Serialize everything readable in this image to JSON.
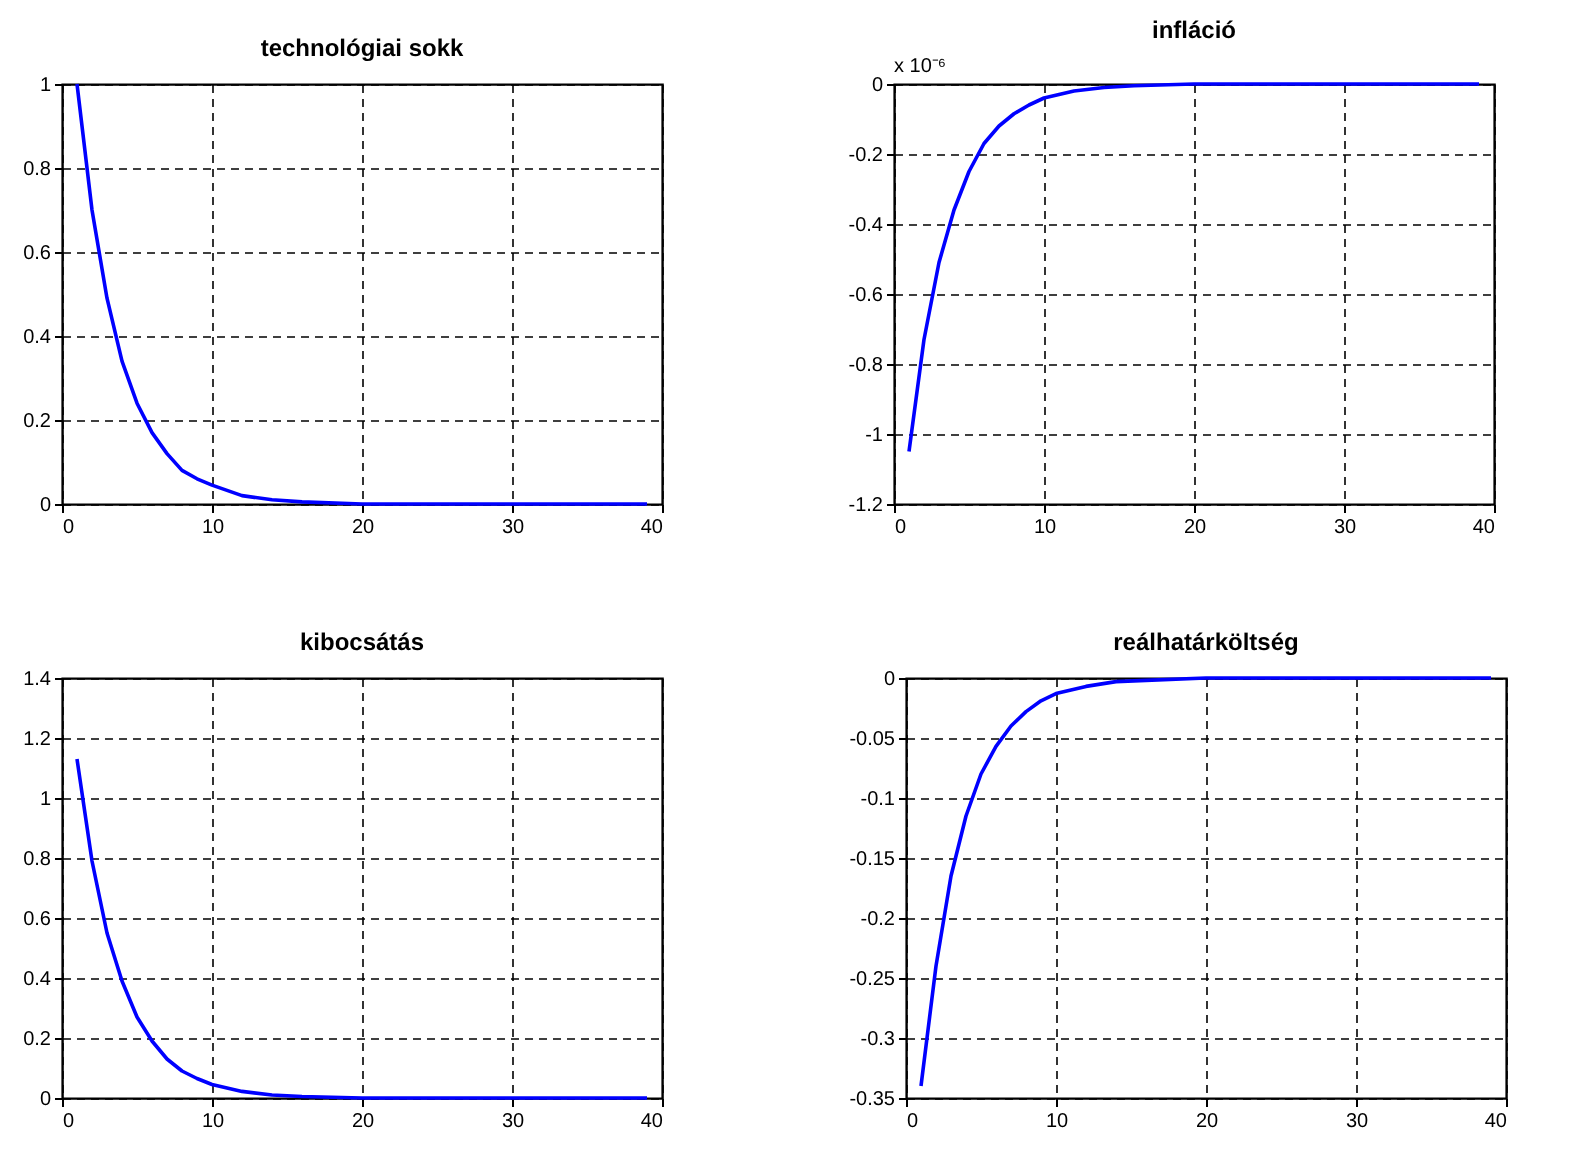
{
  "chart_data": [
    {
      "type": "line",
      "title": "technológiai sokk",
      "x": [
        1,
        2,
        3,
        4,
        5,
        6,
        7,
        8,
        9,
        10,
        12,
        14,
        16,
        20,
        39
      ],
      "series": [
        {
          "color": "#0000ff",
          "values": [
            1,
            0.7,
            0.49,
            0.34,
            0.24,
            0.17,
            0.12,
            0.08,
            0.06,
            0.045,
            0.02,
            0.01,
            0.005,
            0,
            0
          ]
        }
      ],
      "xlim": [
        0,
        40
      ],
      "xticks": [
        0,
        10,
        20,
        30,
        40
      ],
      "ylim": [
        0,
        1
      ],
      "yticks": [
        0,
        0.2,
        0.4,
        0.6,
        0.8,
        1
      ],
      "grid": true,
      "marker": "none",
      "line_style": "solid"
    },
    {
      "type": "line",
      "title": "infláció",
      "annotations": [
        "x 10⁻⁶"
      ],
      "x": [
        1,
        2,
        3,
        4,
        5,
        6,
        7,
        8,
        9,
        10,
        12,
        14,
        16,
        20,
        39
      ],
      "series": [
        {
          "color": "#0000ff",
          "values": [
            -1.05,
            -0.73,
            -0.51,
            -0.36,
            -0.25,
            -0.17,
            -0.12,
            -0.085,
            -0.06,
            -0.04,
            -0.02,
            -0.01,
            -0.005,
            0,
            0
          ]
        }
      ],
      "xlim": [
        0,
        40
      ],
      "xticks": [
        0,
        10,
        20,
        30,
        40
      ],
      "ylim": [
        -1.2,
        0
      ],
      "yticks": [
        -1.2,
        -1,
        -0.8,
        -0.6,
        -0.4,
        -0.2,
        0
      ],
      "grid": true,
      "marker": "none",
      "line_style": "solid"
    },
    {
      "type": "line",
      "title": "kibocsátás",
      "x": [
        1,
        2,
        3,
        4,
        5,
        6,
        7,
        8,
        9,
        10,
        12,
        14,
        16,
        20,
        39
      ],
      "series": [
        {
          "color": "#0000ff",
          "values": [
            1.13,
            0.79,
            0.55,
            0.39,
            0.27,
            0.19,
            0.13,
            0.09,
            0.065,
            0.045,
            0.022,
            0.01,
            0.005,
            0,
            0
          ]
        }
      ],
      "xlim": [
        0,
        40
      ],
      "xticks": [
        0,
        10,
        20,
        30,
        40
      ],
      "ylim": [
        0,
        1.4
      ],
      "yticks": [
        0,
        0.2,
        0.4,
        0.6,
        0.8,
        1,
        1.2,
        1.4
      ],
      "grid": true,
      "marker": "none",
      "line_style": "solid"
    },
    {
      "type": "line",
      "title": "reálhatárköltség",
      "x": [
        1,
        2,
        3,
        4,
        5,
        6,
        7,
        8,
        9,
        10,
        12,
        14,
        16,
        20,
        39
      ],
      "series": [
        {
          "color": "#0000ff",
          "values": [
            -0.34,
            -0.24,
            -0.165,
            -0.115,
            -0.08,
            -0.057,
            -0.04,
            -0.028,
            -0.019,
            -0.013,
            -0.007,
            -0.003,
            -0.002,
            0,
            0
          ]
        }
      ],
      "xlim": [
        0,
        40
      ],
      "xticks": [
        0,
        10,
        20,
        30,
        40
      ],
      "ylim": [
        -0.35,
        0
      ],
      "yticks": [
        -0.35,
        -0.3,
        -0.25,
        -0.2,
        -0.15,
        -0.1,
        -0.05,
        0
      ],
      "grid": true,
      "marker": "none",
      "line_style": "solid"
    }
  ]
}
